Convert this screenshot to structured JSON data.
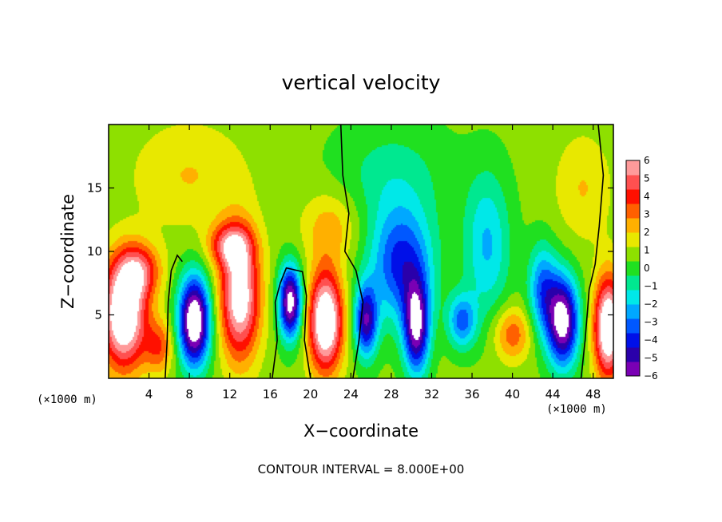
{
  "chart_data": {
    "type": "heatmap",
    "title": "vertical velocity",
    "xlabel": "X−coordinate",
    "ylabel": "Z−coordinate",
    "x_unit_left": "(×1000 m)",
    "x_unit_right": "(×1000 m)",
    "xlim": [
      0,
      50
    ],
    "ylim": [
      0,
      20
    ],
    "x_ticks": [
      4,
      8,
      12,
      16,
      20,
      24,
      28,
      32,
      36,
      40,
      44,
      48
    ],
    "y_ticks": [
      5,
      10,
      15
    ],
    "colorbar": {
      "ticks": [
        6,
        5,
        4,
        3,
        2,
        1,
        0,
        -1,
        -2,
        -3,
        -4,
        -5,
        -6
      ],
      "tick_labels": [
        "6",
        "5",
        "4",
        "3",
        "2",
        "1",
        "0",
        "−1",
        "−2",
        "−3",
        "−4",
        "−5",
        "−6"
      ],
      "colors": [
        "#7a00b4",
        "#2a00aa",
        "#0010e8",
        "#0058ff",
        "#00a8ff",
        "#00e8e8",
        "#00e890",
        "#20e020",
        "#8ee000",
        "#e8e800",
        "#ffb000",
        "#ff6000",
        "#ff1000",
        "#ff5050",
        "#ff9a9a"
      ]
    },
    "field_base": 0.7,
    "blobs": [
      {
        "x": 1.5,
        "z": 5.0,
        "w": 8,
        "sx": 1.6,
        "sz": 3.0
      },
      {
        "x": 3.0,
        "z": 8.5,
        "w": 4,
        "sx": 1.5,
        "sz": 1.5
      },
      {
        "x": 5.0,
        "z": 2.5,
        "w": 3,
        "sx": 1.0,
        "sz": 1.5
      },
      {
        "x": 8.5,
        "z": 4.5,
        "w": -9,
        "sx": 1.1,
        "sz": 2.5
      },
      {
        "x": 13.0,
        "z": 6.5,
        "w": 7,
        "sx": 1.4,
        "sz": 3.5
      },
      {
        "x": 12.0,
        "z": 10.5,
        "w": 4,
        "sx": 1.5,
        "sz": 1.2
      },
      {
        "x": 18.0,
        "z": 6.0,
        "w": -8,
        "sx": 0.8,
        "sz": 2.0
      },
      {
        "x": 21.5,
        "z": 4.5,
        "w": 8,
        "sx": 1.2,
        "sz": 2.8
      },
      {
        "x": 22.0,
        "z": 12.0,
        "w": 2,
        "sx": 2.0,
        "sz": 2.0
      },
      {
        "x": 25.5,
        "z": 4.5,
        "w": -6,
        "sx": 0.8,
        "sz": 2.0
      },
      {
        "x": 29.0,
        "z": 9.0,
        "w": -5,
        "sx": 2.2,
        "sz": 3.2
      },
      {
        "x": 30.5,
        "z": 4.0,
        "w": -7,
        "sx": 0.9,
        "sz": 2.6
      },
      {
        "x": 35.0,
        "z": 4.5,
        "w": -4,
        "sx": 1.0,
        "sz": 1.5
      },
      {
        "x": 37.5,
        "z": 10.5,
        "w": -3,
        "sx": 1.6,
        "sz": 4.0
      },
      {
        "x": 40.0,
        "z": 3.5,
        "w": 3,
        "sx": 1.3,
        "sz": 1.5
      },
      {
        "x": 43.0,
        "z": 7.0,
        "w": -4,
        "sx": 1.0,
        "sz": 2.5
      },
      {
        "x": 45.0,
        "z": 4.5,
        "w": -8,
        "sx": 1.1,
        "sz": 2.5
      },
      {
        "x": 49.5,
        "z": 4.0,
        "w": 8,
        "sx": 1.0,
        "sz": 2.8
      },
      {
        "x": 47.0,
        "z": 15.0,
        "w": 1.5,
        "sx": 2.0,
        "sz": 3.0
      },
      {
        "x": 28.0,
        "z": 16.0,
        "w": -1.5,
        "sx": 4.0,
        "sz": 3.0
      },
      {
        "x": 8.0,
        "z": 16.0,
        "w": 1.5,
        "sx": 4.0,
        "sz": 3.0
      }
    ],
    "contour_interval": "CONTOUR INTERVAL = 8.000E+00"
  }
}
